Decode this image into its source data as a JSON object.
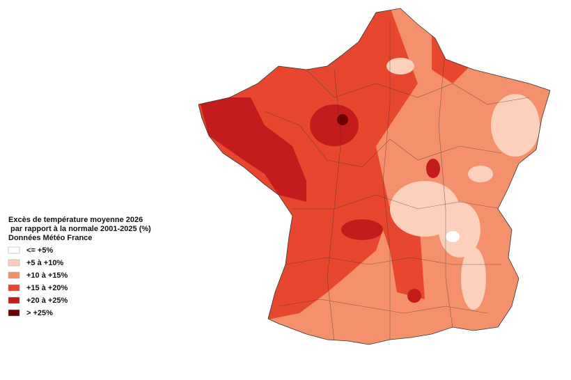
{
  "legend": {
    "title_lines": [
      "Excès de température moyenne 2026",
      " par rapport à la normale 2001-2025 (%)",
      "Données Météo France"
    ],
    "items": [
      {
        "label": "<= +5%",
        "color": "#ffffff"
      },
      {
        "label": "+5 à +10%",
        "color": "#fcd0bd"
      },
      {
        "label": "+10 à +15%",
        "color": "#f4916c"
      },
      {
        "label": "+15 à +20%",
        "color": "#e8472f"
      },
      {
        "label": "+20 à +25%",
        "color": "#c41c1c"
      },
      {
        "label": "> +25%",
        "color": "#6b0000"
      }
    ]
  }
}
